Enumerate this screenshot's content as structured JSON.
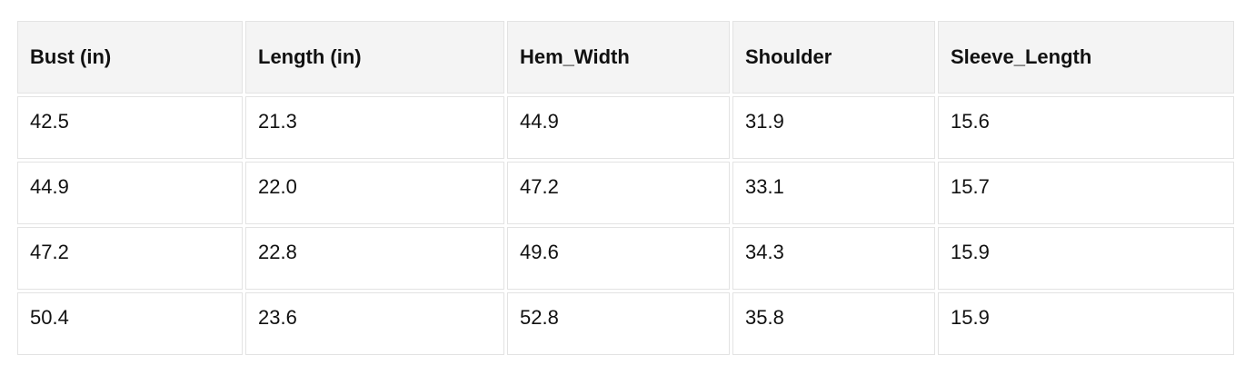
{
  "table": {
    "columns": [
      "Bust (in)",
      "Length (in)",
      "Hem_Width",
      "Shoulder",
      "Sleeve_Length"
    ],
    "rows": [
      [
        "42.5",
        "21.3",
        "44.9",
        "31.9",
        "15.6"
      ],
      [
        "44.9",
        "22.0",
        "47.2",
        "33.1",
        "15.7"
      ],
      [
        "47.2",
        "22.8",
        "49.6",
        "34.3",
        "15.9"
      ],
      [
        "50.4",
        "23.6",
        "52.8",
        "35.8",
        "15.9"
      ]
    ]
  },
  "chart_data": {
    "type": "table",
    "title": "",
    "columns": [
      "Bust (in)",
      "Length (in)",
      "Hem_Width",
      "Shoulder",
      "Sleeve_Length"
    ],
    "rows": [
      [
        42.5,
        21.3,
        44.9,
        31.9,
        15.6
      ],
      [
        44.9,
        22.0,
        47.2,
        33.1,
        15.7
      ],
      [
        47.2,
        22.8,
        49.6,
        34.3,
        15.9
      ],
      [
        50.4,
        23.6,
        52.8,
        35.8,
        15.9
      ]
    ]
  },
  "colors": {
    "page_bg": "#ffffff",
    "header_bg": "#f4f4f4",
    "cell_bg": "#ffffff",
    "border": "#e3e3e3",
    "text": "#111111"
  }
}
